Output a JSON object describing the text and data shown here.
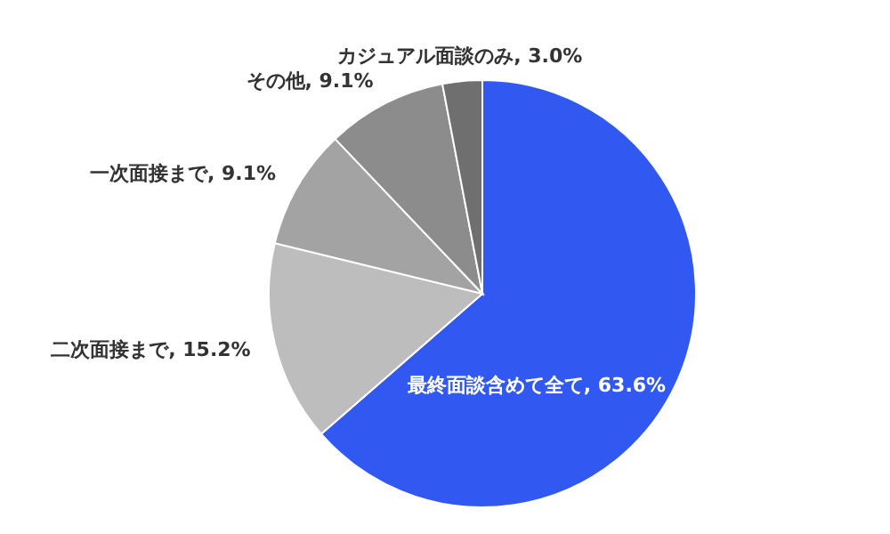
{
  "chart_data": {
    "type": "pie",
    "categories": [
      "最終面談含めて全て",
      "二次面接まで",
      "一次面接まで",
      "その他",
      "カジュアル面談のみ"
    ],
    "values": [
      63.6,
      15.2,
      9.1,
      9.1,
      3.0
    ],
    "value_labels": [
      "63.6%",
      "15.2%",
      "9.1%",
      "9.1%",
      "3.0%"
    ],
    "colors": [
      "#3158f0",
      "#bdbdbd",
      "#a3a3a3",
      "#8c8c8c",
      "#6f6f6f"
    ],
    "legend": false
  }
}
